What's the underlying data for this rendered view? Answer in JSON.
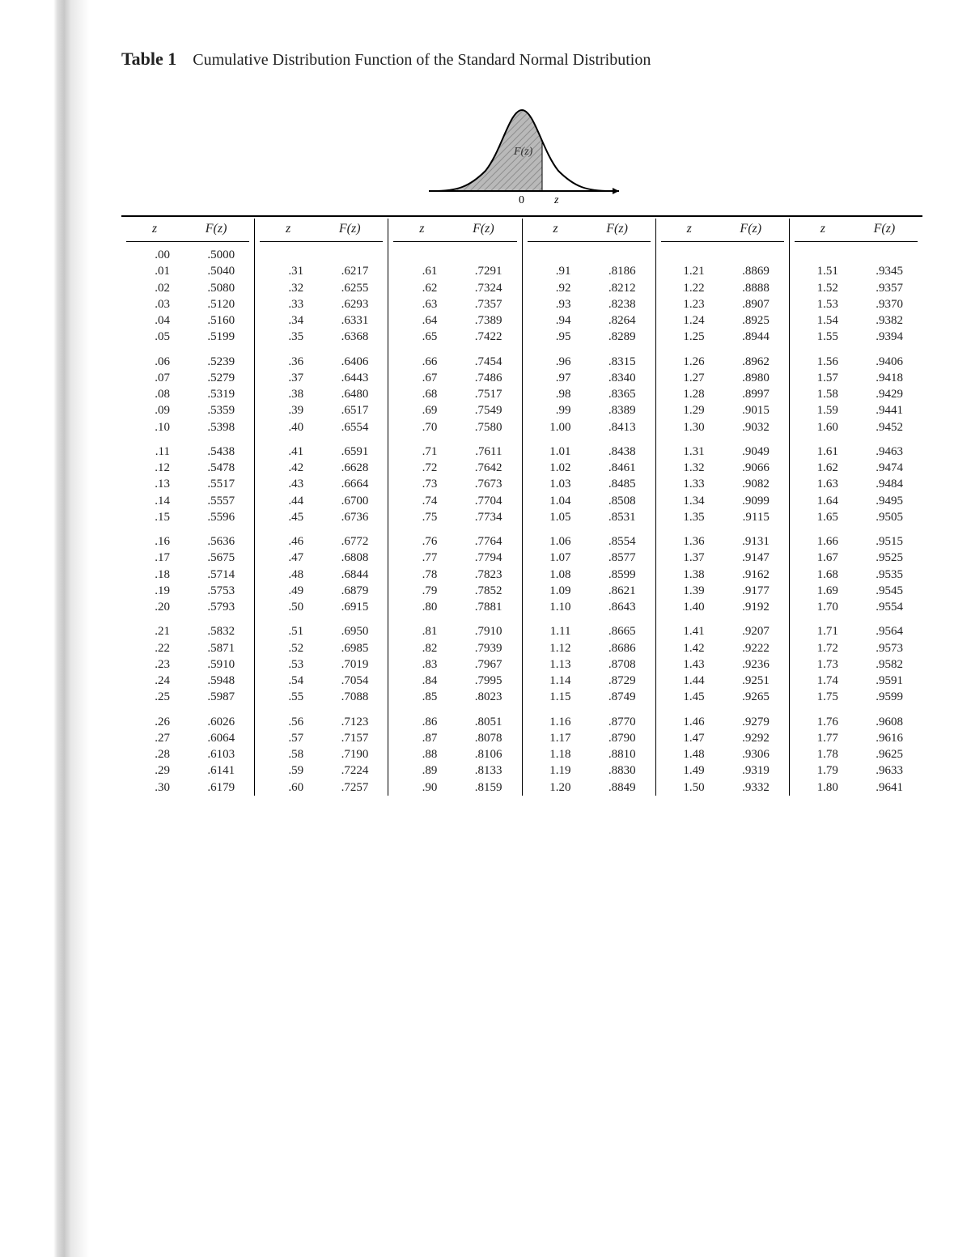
{
  "title_prefix": "Table 1",
  "title_rest": "Cumulative Distribution Function of the Standard Normal Distribution",
  "figure": {
    "label_inside": "F(z)",
    "axis_zero": "0",
    "axis_z": "z",
    "fill": "#b9b9b9",
    "hatch": "#8e8e8e",
    "line": "#000000",
    "bg": "#ffffff"
  },
  "header_z": "z",
  "header_Fz": "F(z)",
  "columns": [
    {
      "start": "0.00",
      "rows": [
        [
          ".00",
          ".5000"
        ],
        [
          ".01",
          ".5040"
        ],
        [
          ".02",
          ".5080"
        ],
        [
          ".03",
          ".5120"
        ],
        [
          ".04",
          ".5160"
        ],
        [
          ".05",
          ".5199"
        ],
        [
          ".06",
          ".5239"
        ],
        [
          ".07",
          ".5279"
        ],
        [
          ".08",
          ".5319"
        ],
        [
          ".09",
          ".5359"
        ],
        [
          ".10",
          ".5398"
        ],
        [
          ".11",
          ".5438"
        ],
        [
          ".12",
          ".5478"
        ],
        [
          ".13",
          ".5517"
        ],
        [
          ".14",
          ".5557"
        ],
        [
          ".15",
          ".5596"
        ],
        [
          ".16",
          ".5636"
        ],
        [
          ".17",
          ".5675"
        ],
        [
          ".18",
          ".5714"
        ],
        [
          ".19",
          ".5753"
        ],
        [
          ".20",
          ".5793"
        ],
        [
          ".21",
          ".5832"
        ],
        [
          ".22",
          ".5871"
        ],
        [
          ".23",
          ".5910"
        ],
        [
          ".24",
          ".5948"
        ],
        [
          ".25",
          ".5987"
        ],
        [
          ".26",
          ".6026"
        ],
        [
          ".27",
          ".6064"
        ],
        [
          ".28",
          ".6103"
        ],
        [
          ".29",
          ".6141"
        ],
        [
          ".30",
          ".6179"
        ]
      ]
    },
    {
      "start": "0.31",
      "rows": [
        [
          "",
          ""
        ],
        [
          ".31",
          ".6217"
        ],
        [
          ".32",
          ".6255"
        ],
        [
          ".33",
          ".6293"
        ],
        [
          ".34",
          ".6331"
        ],
        [
          ".35",
          ".6368"
        ],
        [
          ".36",
          ".6406"
        ],
        [
          ".37",
          ".6443"
        ],
        [
          ".38",
          ".6480"
        ],
        [
          ".39",
          ".6517"
        ],
        [
          ".40",
          ".6554"
        ],
        [
          ".41",
          ".6591"
        ],
        [
          ".42",
          ".6628"
        ],
        [
          ".43",
          ".6664"
        ],
        [
          ".44",
          ".6700"
        ],
        [
          ".45",
          ".6736"
        ],
        [
          ".46",
          ".6772"
        ],
        [
          ".47",
          ".6808"
        ],
        [
          ".48",
          ".6844"
        ],
        [
          ".49",
          ".6879"
        ],
        [
          ".50",
          ".6915"
        ],
        [
          ".51",
          ".6950"
        ],
        [
          ".52",
          ".6985"
        ],
        [
          ".53",
          ".7019"
        ],
        [
          ".54",
          ".7054"
        ],
        [
          ".55",
          ".7088"
        ],
        [
          ".56",
          ".7123"
        ],
        [
          ".57",
          ".7157"
        ],
        [
          ".58",
          ".7190"
        ],
        [
          ".59",
          ".7224"
        ],
        [
          ".60",
          ".7257"
        ]
      ]
    },
    {
      "start": "0.61",
      "rows": [
        [
          "",
          ""
        ],
        [
          ".61",
          ".7291"
        ],
        [
          ".62",
          ".7324"
        ],
        [
          ".63",
          ".7357"
        ],
        [
          ".64",
          ".7389"
        ],
        [
          ".65",
          ".7422"
        ],
        [
          ".66",
          ".7454"
        ],
        [
          ".67",
          ".7486"
        ],
        [
          ".68",
          ".7517"
        ],
        [
          ".69",
          ".7549"
        ],
        [
          ".70",
          ".7580"
        ],
        [
          ".71",
          ".7611"
        ],
        [
          ".72",
          ".7642"
        ],
        [
          ".73",
          ".7673"
        ],
        [
          ".74",
          ".7704"
        ],
        [
          ".75",
          ".7734"
        ],
        [
          ".76",
          ".7764"
        ],
        [
          ".77",
          ".7794"
        ],
        [
          ".78",
          ".7823"
        ],
        [
          ".79",
          ".7852"
        ],
        [
          ".80",
          ".7881"
        ],
        [
          ".81",
          ".7910"
        ],
        [
          ".82",
          ".7939"
        ],
        [
          ".83",
          ".7967"
        ],
        [
          ".84",
          ".7995"
        ],
        [
          ".85",
          ".8023"
        ],
        [
          ".86",
          ".8051"
        ],
        [
          ".87",
          ".8078"
        ],
        [
          ".88",
          ".8106"
        ],
        [
          ".89",
          ".8133"
        ],
        [
          ".90",
          ".8159"
        ]
      ]
    },
    {
      "start": "0.91",
      "rows": [
        [
          "",
          ""
        ],
        [
          ".91",
          ".8186"
        ],
        [
          ".92",
          ".8212"
        ],
        [
          ".93",
          ".8238"
        ],
        [
          ".94",
          ".8264"
        ],
        [
          ".95",
          ".8289"
        ],
        [
          ".96",
          ".8315"
        ],
        [
          ".97",
          ".8340"
        ],
        [
          ".98",
          ".8365"
        ],
        [
          ".99",
          ".8389"
        ],
        [
          "1.00",
          ".8413"
        ],
        [
          "1.01",
          ".8438"
        ],
        [
          "1.02",
          ".8461"
        ],
        [
          "1.03",
          ".8485"
        ],
        [
          "1.04",
          ".8508"
        ],
        [
          "1.05",
          ".8531"
        ],
        [
          "1.06",
          ".8554"
        ],
        [
          "1.07",
          ".8577"
        ],
        [
          "1.08",
          ".8599"
        ],
        [
          "1.09",
          ".8621"
        ],
        [
          "1.10",
          ".8643"
        ],
        [
          "1.11",
          ".8665"
        ],
        [
          "1.12",
          ".8686"
        ],
        [
          "1.13",
          ".8708"
        ],
        [
          "1.14",
          ".8729"
        ],
        [
          "1.15",
          ".8749"
        ],
        [
          "1.16",
          ".8770"
        ],
        [
          "1.17",
          ".8790"
        ],
        [
          "1.18",
          ".8810"
        ],
        [
          "1.19",
          ".8830"
        ],
        [
          "1.20",
          ".8849"
        ]
      ]
    },
    {
      "start": "1.21",
      "rows": [
        [
          "",
          ""
        ],
        [
          "1.21",
          ".8869"
        ],
        [
          "1.22",
          ".8888"
        ],
        [
          "1.23",
          ".8907"
        ],
        [
          "1.24",
          ".8925"
        ],
        [
          "1.25",
          ".8944"
        ],
        [
          "1.26",
          ".8962"
        ],
        [
          "1.27",
          ".8980"
        ],
        [
          "1.28",
          ".8997"
        ],
        [
          "1.29",
          ".9015"
        ],
        [
          "1.30",
          ".9032"
        ],
        [
          "1.31",
          ".9049"
        ],
        [
          "1.32",
          ".9066"
        ],
        [
          "1.33",
          ".9082"
        ],
        [
          "1.34",
          ".9099"
        ],
        [
          "1.35",
          ".9115"
        ],
        [
          "1.36",
          ".9131"
        ],
        [
          "1.37",
          ".9147"
        ],
        [
          "1.38",
          ".9162"
        ],
        [
          "1.39",
          ".9177"
        ],
        [
          "1.40",
          ".9192"
        ],
        [
          "1.41",
          ".9207"
        ],
        [
          "1.42",
          ".9222"
        ],
        [
          "1.43",
          ".9236"
        ],
        [
          "1.44",
          ".9251"
        ],
        [
          "1.45",
          ".9265"
        ],
        [
          "1.46",
          ".9279"
        ],
        [
          "1.47",
          ".9292"
        ],
        [
          "1.48",
          ".9306"
        ],
        [
          "1.49",
          ".9319"
        ],
        [
          "1.50",
          ".9332"
        ]
      ]
    },
    {
      "start": "1.51",
      "rows": [
        [
          "",
          ""
        ],
        [
          "1.51",
          ".9345"
        ],
        [
          "1.52",
          ".9357"
        ],
        [
          "1.53",
          ".9370"
        ],
        [
          "1.54",
          ".9382"
        ],
        [
          "1.55",
          ".9394"
        ],
        [
          "1.56",
          ".9406"
        ],
        [
          "1.57",
          ".9418"
        ],
        [
          "1.58",
          ".9429"
        ],
        [
          "1.59",
          ".9441"
        ],
        [
          "1.60",
          ".9452"
        ],
        [
          "1.61",
          ".9463"
        ],
        [
          "1.62",
          ".9474"
        ],
        [
          "1.63",
          ".9484"
        ],
        [
          "1.64",
          ".9495"
        ],
        [
          "1.65",
          ".9505"
        ],
        [
          "1.66",
          ".9515"
        ],
        [
          "1.67",
          ".9525"
        ],
        [
          "1.68",
          ".9535"
        ],
        [
          "1.69",
          ".9545"
        ],
        [
          "1.70",
          ".9554"
        ],
        [
          "1.71",
          ".9564"
        ],
        [
          "1.72",
          ".9573"
        ],
        [
          "1.73",
          ".9582"
        ],
        [
          "1.74",
          ".9591"
        ],
        [
          "1.75",
          ".9599"
        ],
        [
          "1.76",
          ".9608"
        ],
        [
          "1.77",
          ".9616"
        ],
        [
          "1.78",
          ".9625"
        ],
        [
          "1.79",
          ".9633"
        ],
        [
          "1.80",
          ".9641"
        ]
      ]
    }
  ],
  "group_breaks": [
    6,
    11,
    16,
    21,
    26
  ]
}
